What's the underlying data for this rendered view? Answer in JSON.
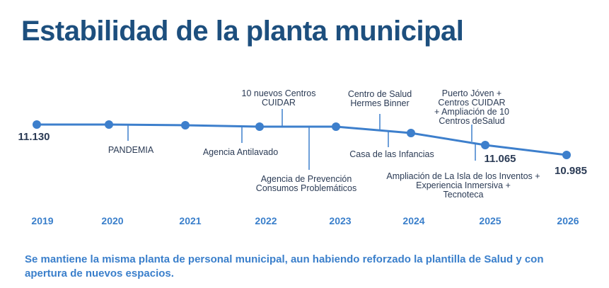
{
  "title": "Estabilidad de la planta municipal",
  "colors": {
    "line": "#3d7fcc",
    "text": "#2b3b55",
    "title": "#1d4f7e",
    "accent": "#3a7fcb"
  },
  "chart_data": {
    "type": "line",
    "categories": [
      "2019",
      "2020",
      "2021",
      "2022",
      "2023",
      "2024",
      "2025",
      "2026"
    ],
    "labeled_values": {
      "2019": 11130,
      "2025": 11065,
      "2026": 10985
    },
    "value_labels": [
      "11.130",
      "11.065",
      "10.985"
    ]
  },
  "years": [
    "2019",
    "2020",
    "2021",
    "2022",
    "2023",
    "2024",
    "2025",
    "2026"
  ],
  "events": [
    "PANDEMIA",
    "Agencia Antilavado",
    "10 nuevos Centros\nCUIDAR",
    "Agencia de Prevención\nConsumos Problemáticos",
    "Centro de Salud\nHermes Binner",
    "Casa de las Infancias",
    "Puerto Jóven +\nCentros CUIDAR\n+ Ampliación de 10\nCentros deSalud",
    "Ampliación de La Isla de los Inventos +\nExperiencia Inmersiva +\nTecnoteca"
  ],
  "footer": "Se mantiene la misma planta de personal municipal, aun habiendo reforzado la plantilla de Salud y con apertura de nuevos espacios."
}
